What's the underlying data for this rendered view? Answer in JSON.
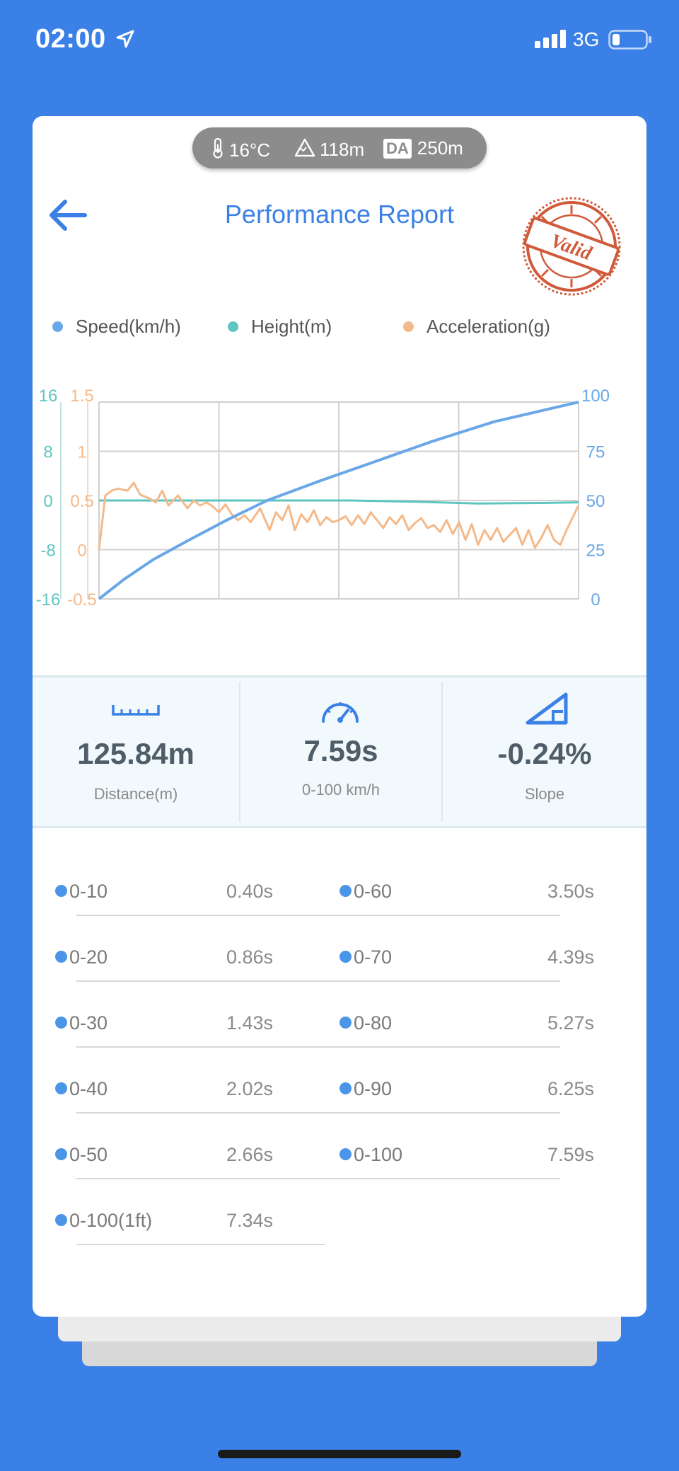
{
  "status_bar": {
    "time": "02:00",
    "network": "3G"
  },
  "conditions": {
    "temperature": "16°C",
    "altitude": "118m",
    "da_label": "DA",
    "density_altitude": "250m"
  },
  "header": {
    "title": "Performance Report",
    "stamp_text": "Valid"
  },
  "colors": {
    "speed": "#69a7e6",
    "height": "#5ec6c0",
    "acceleration": "#f4b98a",
    "accent": "#3a80e6"
  },
  "chart_data": {
    "type": "line",
    "legend": [
      {
        "name": "Speed(km/h)",
        "color": "#69a7e6"
      },
      {
        "name": "Height(m)",
        "color": "#5ec6c0"
      },
      {
        "name": "Acceleration(g)",
        "color": "#f4b98a"
      }
    ],
    "axes": {
      "height_ticks": [
        "16",
        "8",
        "0",
        "-8",
        "-16"
      ],
      "acceleration_ticks": [
        "1.5",
        "1",
        "0.5",
        "0",
        "-0.5"
      ],
      "speed_ticks": [
        "100",
        "75",
        "50",
        "25",
        "0"
      ]
    },
    "x_range": [
      0,
      7.59
    ],
    "grid": true,
    "series": [
      {
        "name": "Speed(km/h)",
        "axis": "right",
        "range": [
          0,
          100
        ],
        "x": [
          0,
          0.4,
          0.86,
          1.43,
          2.02,
          2.66,
          3.5,
          4.39,
          5.27,
          6.25,
          7.59
        ],
        "values": [
          0,
          10,
          20,
          30,
          40,
          50,
          60,
          70,
          80,
          90,
          100
        ]
      },
      {
        "name": "Height(m)",
        "axis": "left-outer",
        "range": [
          -16,
          16
        ],
        "x": [
          0,
          1,
          2,
          3,
          4,
          5,
          6,
          7,
          7.59
        ],
        "values": [
          0,
          0,
          0,
          0,
          0,
          -0.2,
          -0.5,
          -0.4,
          -0.3
        ]
      },
      {
        "name": "Acceleration(g)",
        "axis": "left-inner",
        "range": [
          -0.5,
          1.5
        ],
        "x": [
          0,
          0.1,
          0.2,
          0.3,
          0.45,
          0.55,
          0.65,
          0.8,
          0.9,
          1.0,
          1.1,
          1.25,
          1.4,
          1.5,
          1.6,
          1.7,
          1.8,
          1.9,
          2.0,
          2.1,
          2.2,
          2.3,
          2.4,
          2.55,
          2.7,
          2.8,
          2.9,
          3.0,
          3.1,
          3.2,
          3.3,
          3.4,
          3.5,
          3.6,
          3.7,
          3.8,
          3.9,
          4.0,
          4.1,
          4.2,
          4.3,
          4.4,
          4.5,
          4.6,
          4.7,
          4.8,
          4.9,
          5.0,
          5.1,
          5.2,
          5.3,
          5.4,
          5.5,
          5.6,
          5.7,
          5.8,
          5.9,
          6.0,
          6.1,
          6.2,
          6.3,
          6.4,
          6.5,
          6.6,
          6.7,
          6.8,
          6.9,
          7.0,
          7.1,
          7.2,
          7.3,
          7.4,
          7.59
        ],
        "values": [
          0.0,
          0.55,
          0.6,
          0.62,
          0.6,
          0.68,
          0.56,
          0.52,
          0.48,
          0.6,
          0.45,
          0.55,
          0.42,
          0.5,
          0.45,
          0.48,
          0.44,
          0.38,
          0.46,
          0.36,
          0.3,
          0.35,
          0.28,
          0.42,
          0.2,
          0.38,
          0.3,
          0.45,
          0.2,
          0.36,
          0.28,
          0.4,
          0.25,
          0.33,
          0.28,
          0.3,
          0.34,
          0.25,
          0.35,
          0.26,
          0.38,
          0.3,
          0.22,
          0.33,
          0.26,
          0.35,
          0.2,
          0.27,
          0.32,
          0.22,
          0.25,
          0.18,
          0.3,
          0.16,
          0.28,
          0.1,
          0.26,
          0.05,
          0.2,
          0.1,
          0.22,
          0.08,
          0.15,
          0.22,
          0.05,
          0.2,
          0.02,
          0.12,
          0.25,
          0.1,
          0.05,
          0.2,
          0.45
        ]
      }
    ]
  },
  "stats": [
    {
      "value": "125.84m",
      "label": "Distance(m)",
      "icon": "ruler-icon"
    },
    {
      "value": "7.59s",
      "label": "0-100 km/h",
      "icon": "speedometer-icon"
    },
    {
      "value": "-0.24%",
      "label": "Slope",
      "icon": "slope-icon"
    }
  ],
  "times": [
    {
      "label": "0-10",
      "value": "0.40s"
    },
    {
      "label": "0-60",
      "value": "3.50s"
    },
    {
      "label": "0-20",
      "value": "0.86s"
    },
    {
      "label": "0-70",
      "value": "4.39s"
    },
    {
      "label": "0-30",
      "value": "1.43s"
    },
    {
      "label": "0-80",
      "value": "5.27s"
    },
    {
      "label": "0-40",
      "value": "2.02s"
    },
    {
      "label": "0-90",
      "value": "6.25s"
    },
    {
      "label": "0-50",
      "value": "2.66s"
    },
    {
      "label": "0-100",
      "value": "7.59s"
    },
    {
      "label": "0-100(1ft)",
      "value": "7.34s"
    }
  ]
}
